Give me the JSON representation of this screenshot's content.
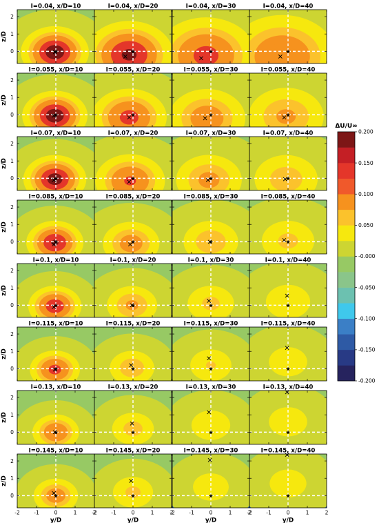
{
  "chart_data": {
    "type": "heatmap",
    "description_rows": "turbulence intensity I",
    "xlabel": "y/D",
    "ylabel": "z/D",
    "xlim": [
      -2,
      2
    ],
    "ylim": [
      -0.7,
      2.4
    ],
    "x_ticks": [
      "-2",
      "-1",
      "0",
      "1",
      "2"
    ],
    "y_ticks": [
      "0",
      "1",
      "2"
    ],
    "colorbar": {
      "label": "ΔU/U∞",
      "range": [
        -0.2,
        0.2
      ],
      "step": 0.025,
      "tick_labels": [
        "0.200",
        "0.150",
        "0.100",
        "0.050",
        "-0.000",
        "-0.050",
        "-0.100",
        "-0.150",
        "-0.200"
      ],
      "colors": [
        "#26235e",
        "#283a85",
        "#2e5aa5",
        "#3b7fc6",
        "#3fc8ec",
        "#6cc1b0",
        "#8ac58a",
        "#97c964",
        "#cdd532",
        "#f6e80e",
        "#fbc22c",
        "#f6921e",
        "#f0592b",
        "#e4362a",
        "#c41f25",
        "#7d1616"
      ]
    },
    "panels": [
      {
        "title": "I=0.04, x/D=10",
        "I": 0.04,
        "xD": 10,
        "peak": 0.2,
        "spread": 0.75,
        "center": [
          -0.05,
          -0.05
        ],
        "marker_x": [
          -0.05,
          -0.05
        ]
      },
      {
        "title": "I=0.04, x/D=20",
        "I": 0.04,
        "xD": 20,
        "peak": 0.175,
        "spread": 1.0,
        "center": [
          -0.2,
          -0.2
        ],
        "marker_x": [
          -0.4,
          -0.3
        ]
      },
      {
        "title": "I=0.04, x/D=30",
        "I": 0.04,
        "xD": 30,
        "peak": 0.13,
        "spread": 1.2,
        "center": [
          -0.25,
          -0.25
        ],
        "marker_x": [
          -0.5,
          -0.4
        ]
      },
      {
        "title": "I=0.04, x/D=40",
        "I": 0.04,
        "xD": 40,
        "peak": 0.11,
        "spread": 1.35,
        "center": [
          -0.3,
          -0.3
        ],
        "marker_x": [
          -0.4,
          -0.3
        ]
      },
      {
        "title": "I=0.055, x/D=10",
        "I": 0.055,
        "xD": 10,
        "peak": 0.2,
        "spread": 0.72,
        "center": [
          -0.05,
          -0.05
        ],
        "marker_x": [
          -0.1,
          -0.05
        ]
      },
      {
        "title": "I=0.055, x/D=20",
        "I": 0.055,
        "xD": 20,
        "peak": 0.13,
        "spread": 0.9,
        "center": [
          -0.2,
          -0.15
        ],
        "marker_x": [
          -0.2,
          -0.15
        ]
      },
      {
        "title": "I=0.055, x/D=30",
        "I": 0.055,
        "xD": 30,
        "peak": 0.09,
        "spread": 1.0,
        "center": [
          -0.2,
          -0.2
        ],
        "marker_x": [
          -0.3,
          -0.2
        ]
      },
      {
        "title": "I=0.055, x/D=40",
        "I": 0.055,
        "xD": 40,
        "peak": 0.07,
        "spread": 1.05,
        "center": [
          -0.1,
          -0.1
        ],
        "marker_x": [
          -0.2,
          -0.15
        ]
      },
      {
        "title": "I=0.07, x/D=10",
        "I": 0.07,
        "xD": 10,
        "peak": 0.19,
        "spread": 0.7,
        "center": [
          -0.05,
          -0.05
        ],
        "marker_x": [
          -0.1,
          -0.1
        ]
      },
      {
        "title": "I=0.07, x/D=20",
        "I": 0.07,
        "xD": 20,
        "peak": 0.12,
        "spread": 0.85,
        "center": [
          -0.15,
          -0.15
        ],
        "marker_x": [
          -0.2,
          -0.2
        ]
      },
      {
        "title": "I=0.07, x/D=30",
        "I": 0.07,
        "xD": 30,
        "peak": 0.075,
        "spread": 0.9,
        "center": [
          -0.1,
          -0.1
        ],
        "marker_x": [
          -0.15,
          -0.1
        ]
      },
      {
        "title": "I=0.07, x/D=40",
        "I": 0.07,
        "xD": 40,
        "peak": 0.055,
        "spread": 0.95,
        "center": [
          -0.1,
          -0.05
        ],
        "marker_x": [
          -0.15,
          -0.05
        ]
      },
      {
        "title": "I=0.085, x/D=10",
        "I": 0.085,
        "xD": 10,
        "peak": 0.17,
        "spread": 0.65,
        "center": [
          -0.05,
          -0.05
        ],
        "marker_x": [
          -0.1,
          -0.15
        ]
      },
      {
        "title": "I=0.085, x/D=20",
        "I": 0.085,
        "xD": 20,
        "peak": 0.085,
        "spread": 0.75,
        "center": [
          -0.1,
          -0.1
        ],
        "marker_x": [
          -0.15,
          -0.15
        ]
      },
      {
        "title": "I=0.085, x/D=30",
        "I": 0.085,
        "xD": 30,
        "peak": 0.06,
        "spread": 0.8,
        "center": [
          0.0,
          0.0
        ],
        "marker_x": [
          -0.05,
          0.0
        ]
      },
      {
        "title": "I=0.085, x/D=40",
        "I": 0.085,
        "xD": 40,
        "peak": 0.045,
        "spread": 0.85,
        "center": [
          0.0,
          0.05
        ],
        "marker_x": [
          -0.2,
          0.1
        ]
      },
      {
        "title": "I=0.1, x/D=10",
        "I": 0.1,
        "xD": 10,
        "peak": 0.15,
        "spread": 0.62,
        "center": [
          -0.05,
          -0.05
        ],
        "marker_x": [
          -0.1,
          -0.1
        ]
      },
      {
        "title": "I=0.1, x/D=20",
        "I": 0.1,
        "xD": 20,
        "peak": 0.07,
        "spread": 0.7,
        "center": [
          -0.05,
          0.0
        ],
        "marker_x": [
          -0.05,
          0.0
        ]
      },
      {
        "title": "I=0.1, x/D=30",
        "I": 0.1,
        "xD": 30,
        "peak": 0.045,
        "spread": 0.75,
        "center": [
          0.0,
          0.1
        ],
        "marker_x": [
          -0.1,
          0.25
        ]
      },
      {
        "title": "I=0.1, x/D=40",
        "I": 0.1,
        "xD": 40,
        "peak": 0.035,
        "spread": 0.8,
        "center": [
          0.0,
          0.2
        ],
        "marker_x": [
          -0.05,
          0.55
        ]
      },
      {
        "title": "I=0.115, x/D=10",
        "I": 0.115,
        "xD": 10,
        "peak": 0.13,
        "spread": 0.6,
        "center": [
          -0.05,
          -0.05
        ],
        "marker_x": [
          -0.05,
          -0.05
        ]
      },
      {
        "title": "I=0.115, x/D=20",
        "I": 0.115,
        "xD": 20,
        "peak": 0.06,
        "spread": 0.65,
        "center": [
          -0.05,
          0.05
        ],
        "marker_x": [
          -0.1,
          0.2
        ]
      },
      {
        "title": "I=0.115, x/D=30",
        "I": 0.115,
        "xD": 30,
        "peak": 0.04,
        "spread": 0.7,
        "center": [
          0.0,
          0.2
        ],
        "marker_x": [
          -0.1,
          0.6
        ]
      },
      {
        "title": "I=0.115, x/D=40",
        "I": 0.115,
        "xD": 40,
        "peak": 0.03,
        "spread": 0.75,
        "center": [
          0.0,
          0.4
        ],
        "marker_x": [
          -0.05,
          1.2
        ]
      },
      {
        "title": "I=0.13, x/D=10",
        "I": 0.13,
        "xD": 10,
        "peak": 0.11,
        "spread": 0.58,
        "center": [
          0.0,
          0.0
        ],
        "marker_x": [
          -0.05,
          0.0
        ]
      },
      {
        "title": "I=0.13, x/D=20",
        "I": 0.13,
        "xD": 20,
        "peak": 0.05,
        "spread": 0.65,
        "center": [
          0.0,
          0.2
        ],
        "marker_x": [
          -0.05,
          0.5
        ]
      },
      {
        "title": "I=0.13, x/D=30",
        "I": 0.13,
        "xD": 30,
        "peak": 0.035,
        "spread": 0.7,
        "center": [
          0.0,
          0.4
        ],
        "marker_x": [
          -0.1,
          1.15
        ]
      },
      {
        "title": "I=0.13, x/D=40",
        "I": 0.13,
        "xD": 40,
        "peak": 0.03,
        "spread": 0.75,
        "center": [
          0.0,
          0.6
        ],
        "marker_x": [
          -0.05,
          2.3
        ]
      },
      {
        "title": "I=0.145, x/D=10",
        "I": 0.145,
        "xD": 10,
        "peak": 0.09,
        "spread": 0.58,
        "center": [
          0.0,
          0.0
        ],
        "marker_x": [
          -0.1,
          0.15
        ]
      },
      {
        "title": "I=0.145, x/D=20",
        "I": 0.145,
        "xD": 20,
        "peak": 0.045,
        "spread": 0.65,
        "center": [
          0.0,
          0.2
        ],
        "marker_x": [
          -0.1,
          0.85
        ]
      },
      {
        "title": "I=0.145, x/D=30",
        "I": 0.145,
        "xD": 30,
        "peak": 0.03,
        "spread": 0.7,
        "center": [
          0.0,
          0.5
        ],
        "marker_x": [
          -0.05,
          2.05
        ]
      },
      {
        "title": "I=0.145, x/D=40",
        "I": 0.145,
        "xD": 40,
        "peak": 0.028,
        "spread": 0.75,
        "center": [
          0.0,
          0.7
        ],
        "marker_x": [
          -0.05,
          2.35
        ]
      }
    ]
  }
}
